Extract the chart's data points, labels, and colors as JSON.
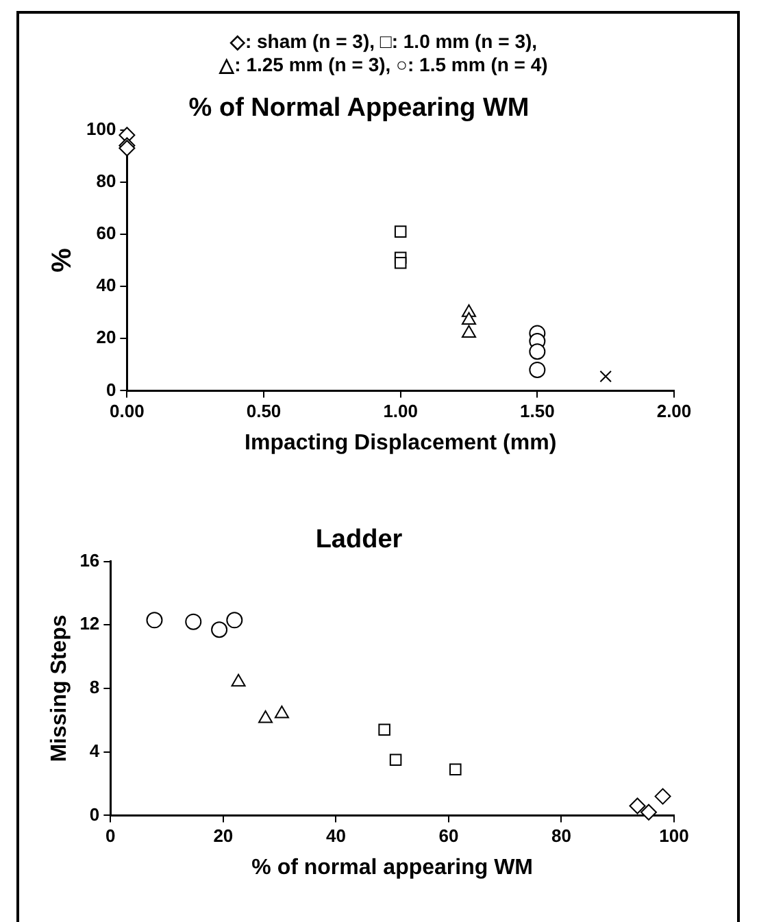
{
  "chart_data": [
    {
      "type": "scatter",
      "title": "% of Normal Appearing WM",
      "xlabel": "Impacting Displacement (mm)",
      "ylabel": "%",
      "annotations": [
        "◇: sham (n = 3), □: 1.0 mm (n = 3),",
        "△: 1.25 mm (n = 3), ○: 1.5 mm (n = 4)"
      ],
      "xlim": [
        0,
        2
      ],
      "xticks": [
        {
          "value": 0,
          "label": "0.00"
        },
        {
          "value": 0.5,
          "label": "0.50"
        },
        {
          "value": 1,
          "label": "1.00"
        },
        {
          "value": 1.5,
          "label": "1.50"
        },
        {
          "value": 2,
          "label": "2.00"
        }
      ],
      "ylim": [
        0,
        100
      ],
      "yticks": [
        0,
        20,
        40,
        60,
        80,
        100
      ],
      "grid": false,
      "legend": false,
      "series": [
        {
          "color": "#000000",
          "marker": "diamond",
          "x": [
            0,
            0,
            0
          ],
          "values": [
            98,
            94,
            93
          ]
        },
        {
          "color": "#000000",
          "marker": "square",
          "x": [
            1,
            1,
            1
          ],
          "values": [
            61,
            51,
            49
          ]
        },
        {
          "color": "#000000",
          "marker": "triangle",
          "x": [
            1.25,
            1.25,
            1.25
          ],
          "values": [
            30,
            27,
            22
          ]
        },
        {
          "color": "#000000",
          "marker": "circle",
          "x": [
            1.5,
            1.5,
            1.5,
            1.5
          ],
          "values": [
            22,
            19,
            15,
            8
          ]
        },
        {
          "color": "#000000",
          "marker": "cross",
          "x": [
            1.75
          ],
          "values": [
            5.5
          ]
        }
      ]
    },
    {
      "type": "scatter",
      "title": "Ladder",
      "xlabel": "% of normal appearing WM",
      "ylabel": "Missing Steps",
      "xlim": [
        0,
        100
      ],
      "xticks": [
        0,
        20,
        40,
        60,
        80,
        100
      ],
      "ylim": [
        0,
        16
      ],
      "yticks": [
        0,
        4,
        8,
        12,
        16
      ],
      "grid": false,
      "legend": false,
      "series": [
        {
          "color": "#000000",
          "marker": "circle",
          "x": [
            7.8,
            14.7,
            19.3,
            22
          ],
          "values": [
            12.3,
            12.2,
            11.7,
            12.3
          ]
        },
        {
          "color": "#000000",
          "marker": "triangle",
          "x": [
            22.7,
            27.5,
            30.4
          ],
          "values": [
            8.4,
            6.1,
            6.4
          ]
        },
        {
          "color": "#000000",
          "marker": "square",
          "x": [
            48.6,
            50.6,
            61.2
          ],
          "values": [
            5.4,
            3.5,
            2.9
          ]
        },
        {
          "color": "#000000",
          "marker": "diamond",
          "x": [
            93.5,
            95.5,
            98
          ],
          "values": [
            0.6,
            0.2,
            1.2
          ]
        }
      ]
    }
  ]
}
